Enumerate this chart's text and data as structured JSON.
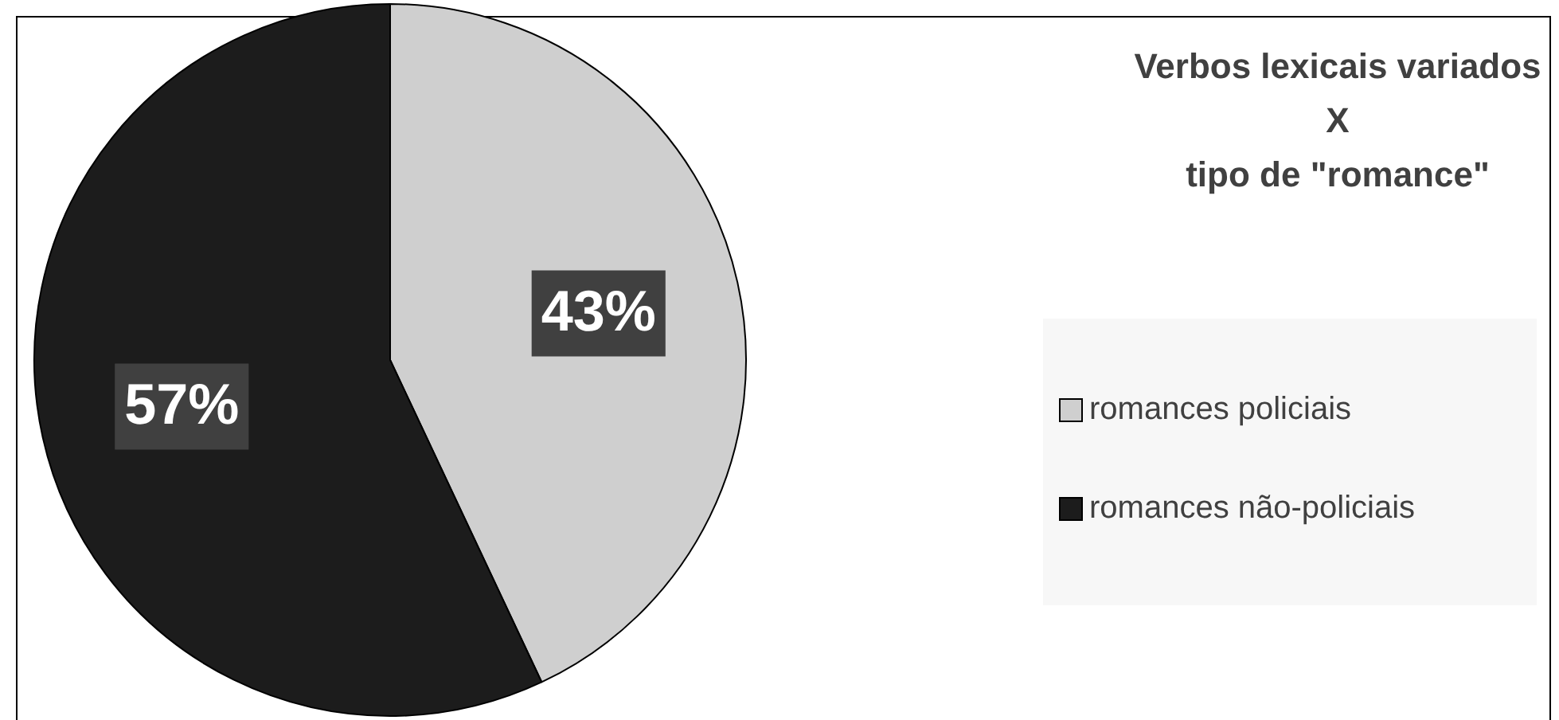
{
  "chart_data": {
    "type": "pie",
    "title": "Verbos lexicais variados\nX\ntipo de \"romance\"",
    "categories": [
      "romances policiais",
      "romances não-policiais"
    ],
    "values": [
      43,
      57
    ],
    "colors": [
      "#cfcfcf",
      "#1c1c1c"
    ],
    "value_labels": [
      "43%",
      "57%"
    ],
    "legend": "right"
  }
}
